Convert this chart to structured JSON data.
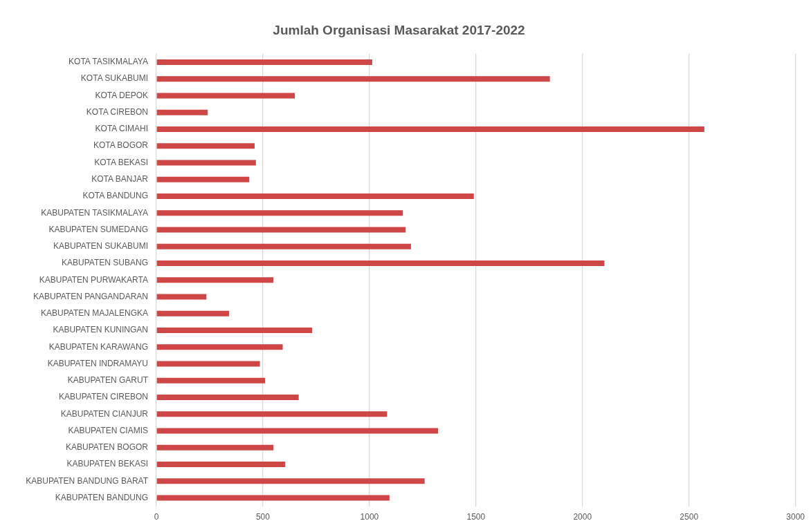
{
  "chart_data": {
    "type": "bar",
    "orientation": "horizontal",
    "title": "Jumlah Organisasi Masarakat 2017-2022",
    "categories": [
      "KOTA TASIKMALAYA",
      "KOTA SUKABUMI",
      "KOTA DEPOK",
      "KOTA CIREBON",
      "KOTA CIMAHI",
      "KOTA BOGOR",
      "KOTA BEKASI",
      "KOTA BANJAR",
      "KOTA BANDUNG",
      "KABUPATEN TASIKMALAYA",
      "KABUPATEN SUMEDANG",
      "KABUPATEN SUKABUMI",
      "KABUPATEN SUBANG",
      "KABUPATEN PURWAKARTA",
      "KABUPATEN PANGANDARAN",
      "KABUPATEN MAJALENGKA",
      "KABUPATEN KUNINGAN",
      "KABUPATEN KARAWANG",
      "KABUPATEN INDRAMAYU",
      "KABUPATEN GARUT",
      "KABUPATEN CIREBON",
      "KABUPATEN CIANJUR",
      "KABUPATEN CIAMIS",
      "KABUPATEN BOGOR",
      "KABUPATEN BEKASI",
      "KABUPATEN BANDUNG BARAT",
      "KABUPATEN BANDUNG"
    ],
    "values": [
      1013,
      1847,
      650,
      241,
      2572,
      461,
      467,
      436,
      1490,
      1157,
      1170,
      1195,
      2103,
      549,
      235,
      341,
      731,
      593,
      486,
      510,
      668,
      1083,
      1322,
      549,
      605,
      1259,
      1094
    ],
    "color": "#ce4646",
    "xlim": [
      0,
      3000
    ],
    "xticks": [
      0,
      500,
      1000,
      1500,
      2000,
      2500,
      3000
    ],
    "grid": "x"
  }
}
